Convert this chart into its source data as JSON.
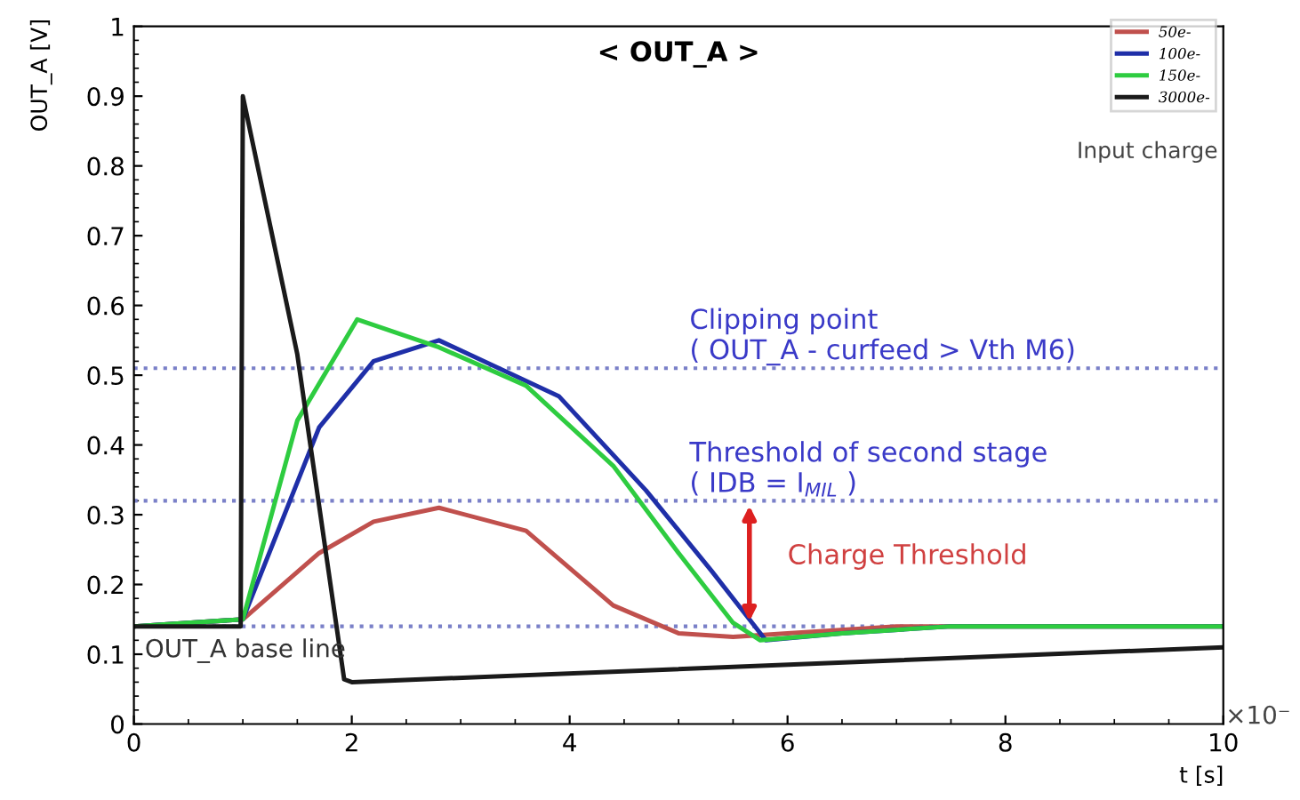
{
  "chart_data": {
    "type": "line",
    "title": "< OUT_A >",
    "xlabel": "t [s]",
    "ylabel": "OUT_A [V]",
    "xlim": [
      0,
      10
    ],
    "xticks": [
      0,
      2,
      4,
      6,
      8,
      10
    ],
    "ylim": [
      0,
      1
    ],
    "yticks": [
      0,
      0.1,
      0.2,
      0.3,
      0.4,
      0.5,
      0.6,
      0.7,
      0.8,
      0.9,
      1
    ],
    "grid": false,
    "legend": "top right",
    "marker": "none",
    "line_style": "solid",
    "series": [
      {
        "name": "50e-",
        "color": "#c0504d",
        "x": [
          0,
          1,
          1.7,
          2.2,
          2.8,
          3.6,
          4.4,
          5.0,
          5.5,
          6.0,
          7.0,
          10
        ],
        "values": [
          0.14,
          0.15,
          0.245,
          0.29,
          0.31,
          0.277,
          0.17,
          0.13,
          0.125,
          0.13,
          0.14,
          0.14
        ]
      },
      {
        "name": "100e-",
        "color": "#1f2fa8",
        "x": [
          0,
          1,
          1.7,
          2.2,
          2.8,
          3.9,
          4.7,
          5.3,
          5.8,
          6.5,
          7.5,
          10
        ],
        "values": [
          0.14,
          0.15,
          0.425,
          0.52,
          0.55,
          0.47,
          0.335,
          0.22,
          0.12,
          0.13,
          0.14,
          0.14
        ]
      },
      {
        "name": "150e-",
        "color": "#2ecc40",
        "x": [
          0,
          1,
          1.5,
          2.05,
          2.8,
          3.6,
          4.4,
          5.0,
          5.5,
          5.75,
          6.5,
          7.5,
          10
        ],
        "values": [
          0.14,
          0.15,
          0.435,
          0.58,
          0.54,
          0.485,
          0.37,
          0.245,
          0.145,
          0.12,
          0.13,
          0.14,
          0.14
        ]
      },
      {
        "name": "3000e-",
        "color": "#1a1a1a",
        "x": [
          0,
          0.98,
          1.0,
          1.5,
          1.93,
          2.0,
          10
        ],
        "values": [
          0.14,
          0.14,
          0.9,
          0.53,
          0.064,
          0.06,
          0.11
        ]
      }
    ],
    "ref_lines": [
      {
        "axis": "y",
        "value": 0.51,
        "color": "#7a80c8",
        "line_style": "dotted"
      },
      {
        "axis": "y",
        "value": 0.32,
        "color": "#7a80c8",
        "line_style": "dotted"
      },
      {
        "axis": "y",
        "value": 0.14,
        "color": "#7a80c8",
        "line_style": "dotted"
      }
    ],
    "annotations": [
      "Clipping point\n( OUT_A - curfeed > Vth M6)",
      "Threshold of second stage\n( IDB = I$_{MIL}$ )",
      "Charge Threshold",
      "OUT_A base line",
      "Input charge",
      "×10⁻"
    ]
  }
}
